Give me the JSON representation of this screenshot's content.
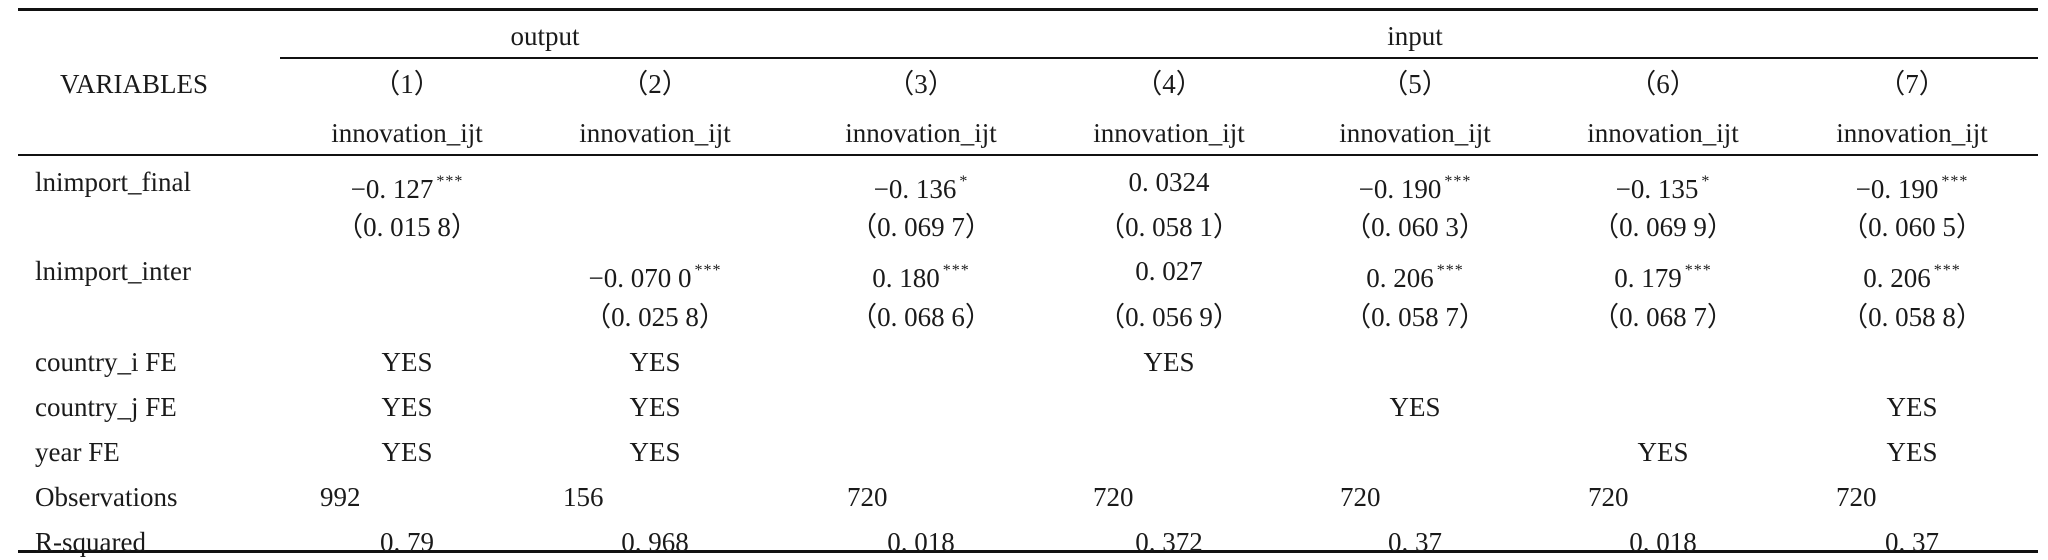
{
  "table": {
    "stub_header": "VARIABLES",
    "group_headers": [
      {
        "label": "output"
      },
      {
        "label": "input"
      }
    ],
    "column_numbers": [
      "（1）",
      "（2）",
      "（3）",
      "（4）",
      "（5）",
      "（6）",
      "（7）"
    ],
    "dependent_vars": [
      "innovation_ijt",
      "innovation_ijt",
      "innovation_ijt",
      "innovation_ijt",
      "innovation_ijt",
      "innovation_ijt",
      "innovation_ijt"
    ],
    "rows": [
      {
        "label": "lnimport_final",
        "coef": [
          {
            "v": "−0. 127",
            "s": "***"
          },
          {
            "v": "",
            "s": ""
          },
          {
            "v": "−0. 136",
            "s": "*"
          },
          {
            "v": "0. 0324",
            "s": ""
          },
          {
            "v": "−0. 190",
            "s": "***"
          },
          {
            "v": "−0. 135",
            "s": "*"
          },
          {
            "v": "−0. 190",
            "s": "***"
          }
        ]
      },
      {
        "label": "",
        "se": [
          "（0. 015 8）",
          "",
          "（0. 069 7）",
          "（0. 058 1）",
          "（0. 060 3）",
          "（0. 069 9）",
          "（0. 060 5）"
        ]
      },
      {
        "label": "lnimport_inter",
        "coef": [
          {
            "v": "",
            "s": ""
          },
          {
            "v": "−0. 070 0",
            "s": "***"
          },
          {
            "v": "0. 180",
            "s": "***"
          },
          {
            "v": "0. 027",
            "s": ""
          },
          {
            "v": "0. 206",
            "s": "***"
          },
          {
            "v": "0. 179",
            "s": "***"
          },
          {
            "v": "0. 206",
            "s": "***"
          }
        ]
      },
      {
        "label": "",
        "se": [
          "",
          "（0. 025 8）",
          "（0. 068 6）",
          "（0. 056 9）",
          "（0. 058 7）",
          "（0. 068 7）",
          "（0. 058 8）"
        ]
      },
      {
        "label": "country_i FE",
        "vals": [
          "YES",
          "YES",
          "",
          "YES",
          "",
          "",
          ""
        ]
      },
      {
        "label": "country_j FE",
        "vals": [
          "YES",
          "YES",
          "",
          "",
          "YES",
          "",
          "YES"
        ]
      },
      {
        "label": "year FE",
        "vals": [
          "YES",
          "YES",
          "",
          "",
          "",
          "YES",
          "YES"
        ]
      },
      {
        "label": "Observations",
        "vals": [
          "992",
          "156",
          "720",
          "720",
          "720",
          "720",
          "720"
        ]
      },
      {
        "label": "R-squared",
        "vals": [
          "0. 79",
          "0. 968",
          "0. 018",
          "0. 372",
          "0. 37",
          "0. 018",
          "0. 37"
        ]
      }
    ]
  }
}
